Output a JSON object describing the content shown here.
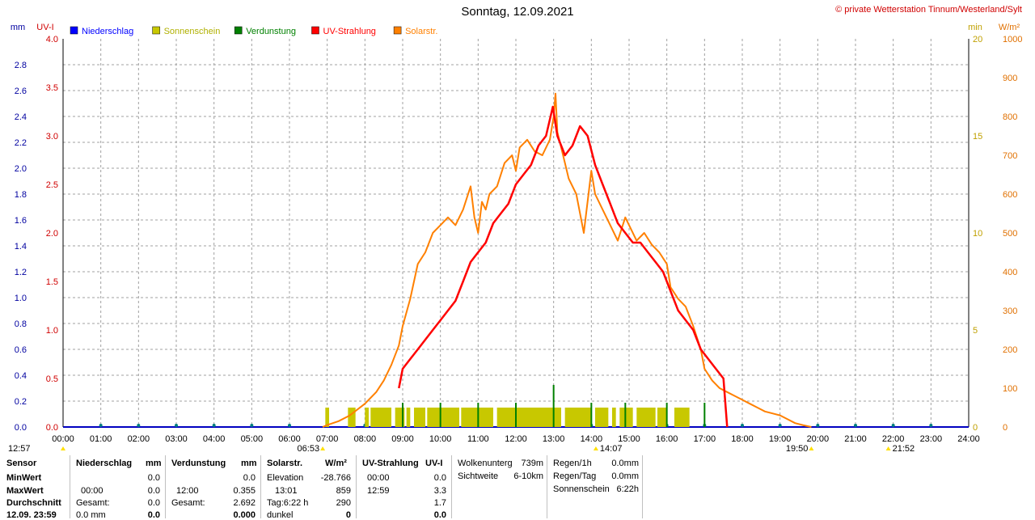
{
  "title": "Sonntag, 12.09.2021",
  "copyright": "© private Wetterstation Tinnum/Westerland/Sylt",
  "chart_data": {
    "type": "line",
    "x_range": [
      "00:00",
      "24:00"
    ],
    "x_ticks": [
      "00:00",
      "01:00",
      "02:00",
      "03:00",
      "04:00",
      "05:00",
      "06:00",
      "07:00",
      "08:00",
      "09:00",
      "10:00",
      "11:00",
      "12:00",
      "13:00",
      "14:00",
      "15:00",
      "16:00",
      "17:00",
      "18:00",
      "19:00",
      "20:00",
      "21:00",
      "22:00",
      "23:00",
      "24:00"
    ],
    "axes": {
      "mm": {
        "label": "mm",
        "range": [
          0,
          3.0
        ],
        "ticks": [
          "0.0",
          "0.2",
          "0.4",
          "0.6",
          "0.8",
          "1.0",
          "1.2",
          "1.4",
          "1.6",
          "1.8",
          "2.0",
          "2.2",
          "2.4",
          "2.6",
          "2.8"
        ]
      },
      "uv": {
        "label": "UV-I",
        "range": [
          0,
          4.0
        ],
        "ticks": [
          "0.0",
          "0.5",
          "1.0",
          "1.5",
          "2.0",
          "2.5",
          "3.0",
          "3.5",
          "4.0"
        ]
      },
      "min": {
        "label": "min",
        "range": [
          0,
          20
        ],
        "ticks": [
          "0",
          "5",
          "10",
          "15",
          "20"
        ]
      },
      "wm2": {
        "label": "W/m²",
        "range": [
          0,
          1000
        ],
        "ticks": [
          "0",
          "100",
          "200",
          "300",
          "400",
          "500",
          "600",
          "700",
          "800",
          "900",
          "1000"
        ]
      }
    },
    "legend": [
      {
        "name": "Niederschlag",
        "color": "#0000ff"
      },
      {
        "name": "Sonnenschein",
        "color": "#c8c800"
      },
      {
        "name": "Verdunstung",
        "color": "#008000"
      },
      {
        "name": "UV-Strahlung",
        "color": "#ff0000"
      },
      {
        "name": "Solarstr.",
        "color": "#ff8000"
      }
    ],
    "grid": true,
    "series": [
      {
        "name": "Solarstr.",
        "axis": "wm2",
        "color": "#ff8000",
        "x": [
          6.88,
          7.0,
          7.3,
          7.6,
          8.0,
          8.3,
          8.5,
          8.7,
          8.9,
          9.0,
          9.2,
          9.4,
          9.6,
          9.8,
          10.0,
          10.2,
          10.4,
          10.6,
          10.8,
          10.9,
          11.0,
          11.1,
          11.2,
          11.3,
          11.5,
          11.7,
          11.9,
          12.0,
          12.1,
          12.3,
          12.5,
          12.7,
          12.9,
          13.0,
          13.05,
          13.1,
          13.2,
          13.3,
          13.4,
          13.6,
          13.8,
          14.0,
          14.1,
          14.3,
          14.5,
          14.7,
          14.9,
          15.0,
          15.2,
          15.4,
          15.6,
          15.8,
          16.0,
          16.1,
          16.3,
          16.5,
          16.7,
          16.9,
          17.0,
          17.2,
          17.4,
          17.6,
          17.8,
          18.0,
          18.2,
          18.4,
          18.6,
          18.8,
          19.0,
          19.2,
          19.4,
          19.6,
          19.83
        ],
        "y": [
          0,
          5,
          15,
          30,
          60,
          90,
          120,
          160,
          210,
          260,
          330,
          420,
          450,
          500,
          520,
          540,
          520,
          560,
          620,
          540,
          500,
          580,
          560,
          600,
          620,
          680,
          700,
          660,
          720,
          740,
          710,
          700,
          740,
          800,
          859,
          760,
          720,
          680,
          640,
          600,
          500,
          660,
          600,
          560,
          520,
          480,
          540,
          520,
          480,
          500,
          470,
          450,
          420,
          360,
          330,
          310,
          260,
          200,
          150,
          120,
          100,
          90,
          80,
          70,
          60,
          50,
          40,
          35,
          30,
          20,
          10,
          5,
          0
        ]
      },
      {
        "name": "UV-Strahlung",
        "axis": "uv",
        "color": "#ff0000",
        "x": [
          8.9,
          9.0,
          9.2,
          9.4,
          9.6,
          9.8,
          10.0,
          10.2,
          10.4,
          10.6,
          10.8,
          11.0,
          11.2,
          11.4,
          11.6,
          11.8,
          12.0,
          12.2,
          12.4,
          12.6,
          12.8,
          12.98,
          13.1,
          13.3,
          13.5,
          13.7,
          13.9,
          14.1,
          14.3,
          14.5,
          14.7,
          14.9,
          15.1,
          15.3,
          15.5,
          15.7,
          15.9,
          16.1,
          16.3,
          16.5,
          16.7,
          16.9,
          17.1,
          17.3,
          17.5,
          17.6
        ],
        "y": [
          0.4,
          0.6,
          0.7,
          0.8,
          0.9,
          1.0,
          1.1,
          1.2,
          1.3,
          1.5,
          1.7,
          1.8,
          1.9,
          2.1,
          2.2,
          2.3,
          2.5,
          2.6,
          2.7,
          2.9,
          3.0,
          3.3,
          3.0,
          2.8,
          2.9,
          3.1,
          3.0,
          2.7,
          2.5,
          2.3,
          2.1,
          2.0,
          1.9,
          1.9,
          1.8,
          1.7,
          1.6,
          1.4,
          1.2,
          1.1,
          1.0,
          0.8,
          0.7,
          0.6,
          0.5,
          0.0
        ]
      },
      {
        "name": "Sonnenschein",
        "axis": "min",
        "type": "bar",
        "color": "#c8c800",
        "segments": [
          [
            6.95,
            7.05
          ],
          [
            7.55,
            7.75
          ],
          [
            8.0,
            8.1
          ],
          [
            8.15,
            8.7
          ],
          [
            8.8,
            9.05
          ],
          [
            9.1,
            9.2
          ],
          [
            9.3,
            9.6
          ],
          [
            9.65,
            10.5
          ],
          [
            10.55,
            11.4
          ],
          [
            11.5,
            13.2
          ],
          [
            13.3,
            14.0
          ],
          [
            14.1,
            14.45
          ],
          [
            14.55,
            14.65
          ],
          [
            14.75,
            15.1
          ],
          [
            15.2,
            15.7
          ],
          [
            15.75,
            16.0
          ],
          [
            16.2,
            16.6
          ]
        ],
        "height": 1
      }
    ],
    "time_markers": [
      {
        "label": "12:57",
        "x": 0.0
      },
      {
        "label": "06:53",
        "x": 6.88
      },
      {
        "label": "14:07",
        "x": 14.12
      },
      {
        "label": "19:50",
        "x": 19.83
      },
      {
        "label": "21:52",
        "x": 21.87
      }
    ]
  },
  "table": {
    "sensor": {
      "header": "Sensor",
      "rows": [
        "MinWert",
        "MaxWert",
        "Durchschnitt",
        "12.09. 23:59"
      ]
    },
    "niederschlag": {
      "header": "Niederschlag",
      "unit": "mm",
      "rows": [
        [
          "",
          "0.0"
        ],
        [
          "00:00",
          "0.0"
        ],
        [
          "Gesamt:",
          "0.0"
        ],
        [
          "0.0 mm",
          "0.0"
        ]
      ]
    },
    "verdunstung": {
      "header": "Verdunstung",
      "unit": "mm",
      "rows": [
        [
          "",
          "0.0"
        ],
        [
          "12:00",
          "0.355"
        ],
        [
          "Gesamt:",
          "2.692"
        ],
        [
          "",
          "0.000"
        ]
      ]
    },
    "solar": {
      "header": "Solarstr.",
      "unit": "W/m²",
      "rows": [
        [
          "Elevation",
          "-28.766"
        ],
        [
          "13:01",
          "859"
        ],
        [
          "Tag:6:22 h",
          "290"
        ],
        [
          "dunkel",
          "0"
        ]
      ]
    },
    "uv": {
      "header": "UV-Strahlung",
      "unit": "UV-I",
      "rows": [
        [
          "00:00",
          "0.0"
        ],
        [
          "12:59",
          "3.3"
        ],
        [
          "",
          "1.7"
        ],
        [
          "",
          "0.0"
        ]
      ]
    },
    "wolken": {
      "rows": [
        [
          "Wolkenunterg",
          "739m"
        ],
        [
          "Sichtweite",
          "6-10km"
        ]
      ]
    },
    "regen": {
      "rows": [
        [
          "Regen/1h",
          "0.0mm"
        ],
        [
          "Regen/Tag",
          "0.0mm"
        ],
        [
          "Sonnenschein",
          "6:22h"
        ]
      ]
    }
  }
}
